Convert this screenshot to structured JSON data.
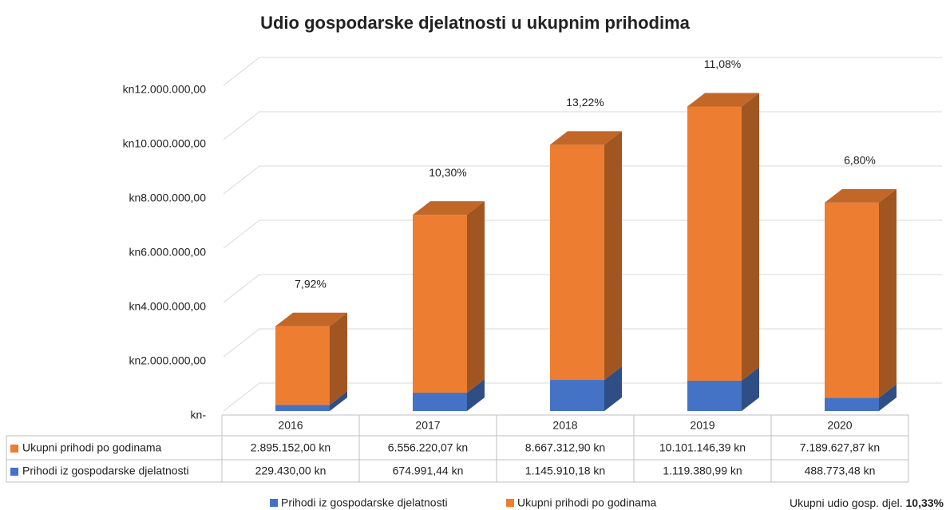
{
  "chart_data": {
    "type": "bar3d_stacked",
    "title": "Udio gospodarske djelatnosti u ukupnim prihodima",
    "categories": [
      "2016",
      "2017",
      "2018",
      "2019",
      "2020"
    ],
    "series": [
      {
        "name": "Prihodi iz gospodarske djelatnosti",
        "color": "#4472c4",
        "values": [
          229430.0,
          674991.44,
          1145910.18,
          1119380.99,
          488773.48
        ],
        "value_labels": [
          "229.430,00 kn",
          "674.991,44 kn",
          "1.145.910,18 kn",
          "1.119.380,99 kn",
          "488.773,48 kn"
        ]
      },
      {
        "name": "Ukupni prihodi po godinama",
        "color": "#ed7d31",
        "values": [
          2895152.0,
          6556220.07,
          8667312.9,
          10101146.39,
          7189627.87
        ],
        "value_labels": [
          "2.895.152,00 kn",
          "6.556.220,07 kn",
          "8.667.312,90 kn",
          "10.101.146,39 kn",
          "7.189.627,87 kn"
        ]
      }
    ],
    "shares": {
      "values": [
        7.92,
        10.3,
        13.22,
        11.08,
        6.8
      ],
      "value_labels": [
        "7,92%",
        "10,30%",
        "13,22%",
        "11,08%",
        "6,80%"
      ]
    },
    "total_share": {
      "label": "Ukupni udio gosp. djel.",
      "value": 10.33,
      "value_label": "10,33%"
    },
    "ylim": [
      0,
      12000000
    ],
    "yticks": [
      {
        "value": 0,
        "label": "kn-"
      },
      {
        "value": 2000000,
        "label": "kn2.000.000,00"
      },
      {
        "value": 4000000,
        "label": "kn4.000.000,00"
      },
      {
        "value": 6000000,
        "label": "kn6.000.000,00"
      },
      {
        "value": 8000000,
        "label": "kn8.000.000,00"
      },
      {
        "value": 10000000,
        "label": "kn10.000.000,00"
      },
      {
        "value": 12000000,
        "label": "kn12.000.000,00"
      }
    ],
    "grid": true
  }
}
